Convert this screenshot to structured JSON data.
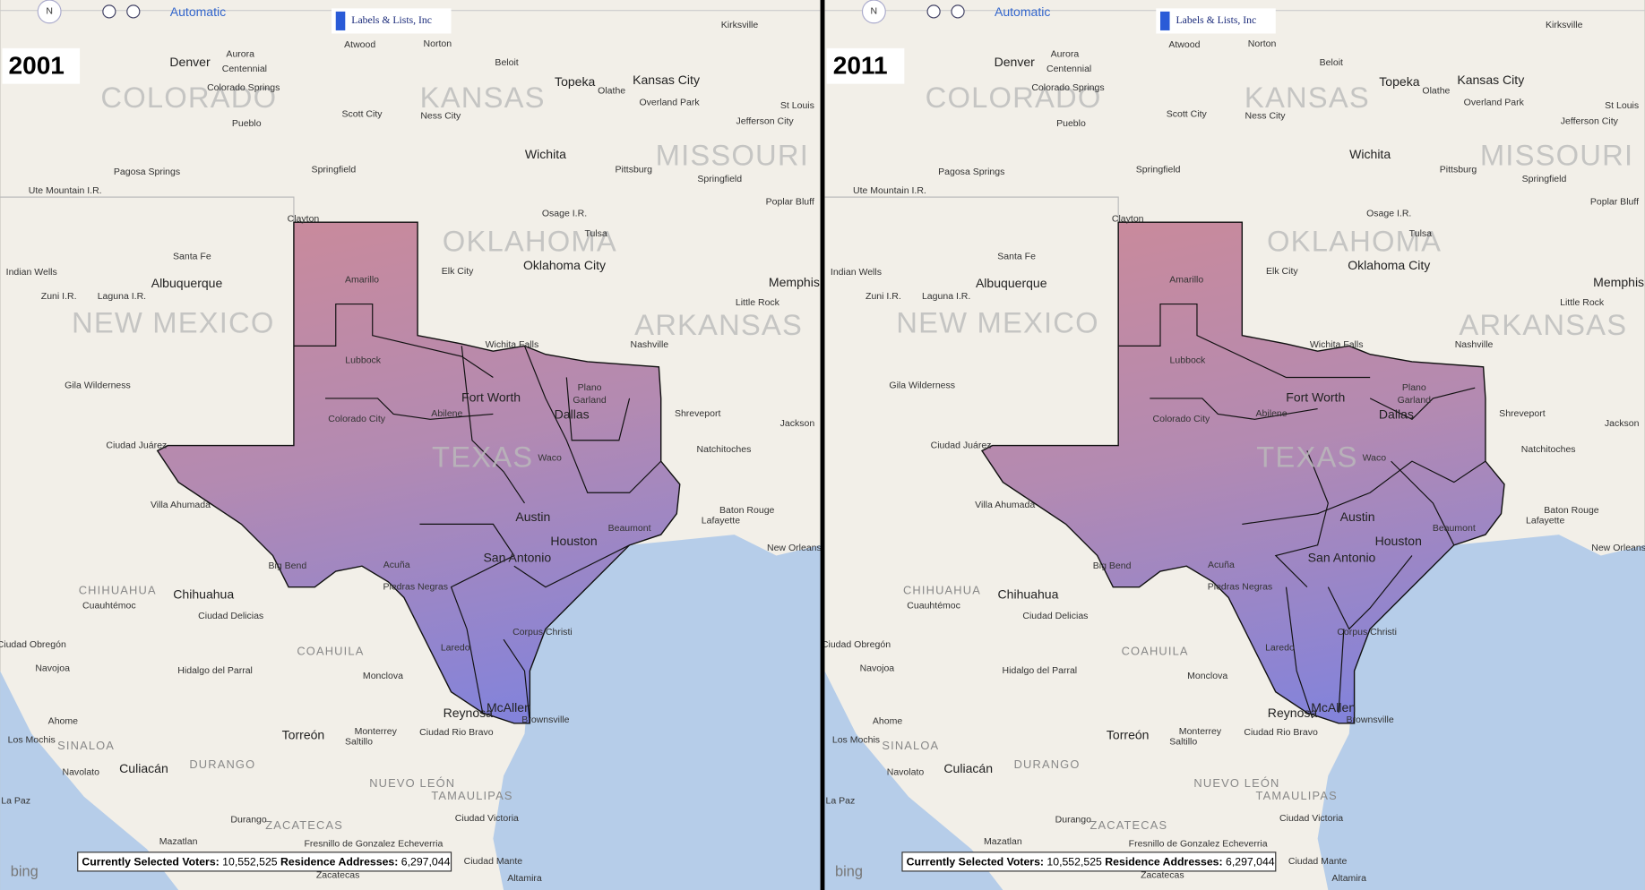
{
  "panels": [
    {
      "year": "2001"
    },
    {
      "year": "2011"
    }
  ],
  "controls": {
    "compass": "N",
    "mode": "Automatic"
  },
  "logo": "Labels & Lists, Inc",
  "attribution": "bing",
  "status": {
    "voters_label": "Currently Selected Voters:",
    "voters": "10,552,525",
    "addresses_label": "Residence Addresses:",
    "addresses": "6,297,044"
  },
  "states": [
    "Colorado",
    "Kansas",
    "Missouri",
    "Oklahoma",
    "New Mexico",
    "Arkansas",
    "Texas",
    "Chihuahua",
    "Coahuila",
    "Durango",
    "Nuevo León",
    "Tamaulipas",
    "Zacatecas",
    "Sinaloa"
  ],
  "cities": [
    "Denver",
    "Aurora",
    "Centennial",
    "Colorado Springs",
    "Pueblo",
    "Atwood",
    "Norton",
    "Beloit",
    "Topeka",
    "Kansas City",
    "Olathe",
    "Overland Park",
    "St Louis",
    "Kirksville",
    "Scott City",
    "Ness City",
    "Jefferson City",
    "Wichita",
    "Springfield",
    "Pittsburg",
    "Springfield",
    "Pagosa Springs",
    "Ute Mountain I.R.",
    "Poplar Bluff",
    "Clayton",
    "Osage I.R.",
    "Tulsa",
    "Santa Fe",
    "Oklahoma City",
    "Elk City",
    "Albuquerque",
    "Memphis",
    "Indian Wells",
    "Zuni I.R.",
    "Laguna I.R.",
    "Amarillo",
    "Little Rock",
    "Wichita Falls",
    "Nashville",
    "Lubbock",
    "Plano",
    "Garland",
    "Fort Worth",
    "Dallas",
    "Abilene",
    "Colorado City",
    "Shreveport",
    "Jackson",
    "Waco",
    "Natchitoches",
    "Ciudad Juárez",
    "Villa Ahumada",
    "Baton Rouge",
    "Lafayette",
    "Austin",
    "Houston",
    "Beaumont",
    "New Orleans",
    "San Antonio",
    "Acuña",
    "Big Bend",
    "Piedras Negras",
    "Corpus Christi",
    "Chihuahua",
    "Cuauhtémoc",
    "Ciudad Delicias",
    "Laredo",
    "Ciudad Obregón",
    "Navojoa",
    "Hidalgo del Parral",
    "Monclova",
    "Ahome",
    "Reynosa",
    "McAllen",
    "Brownsville",
    "Los Mochis",
    "Torreón",
    "Monterrey",
    "Saltillo",
    "Ciudad Rio Bravo",
    "Culiacán",
    "Navolato",
    "Durango",
    "La Paz",
    "Ciudad Victoria",
    "Mazatlan",
    "Fresnillo de Gonzalez Echeverria",
    "Ciudad Mante",
    "Zacatecas",
    "Altamira",
    "Gila Wilderness"
  ]
}
